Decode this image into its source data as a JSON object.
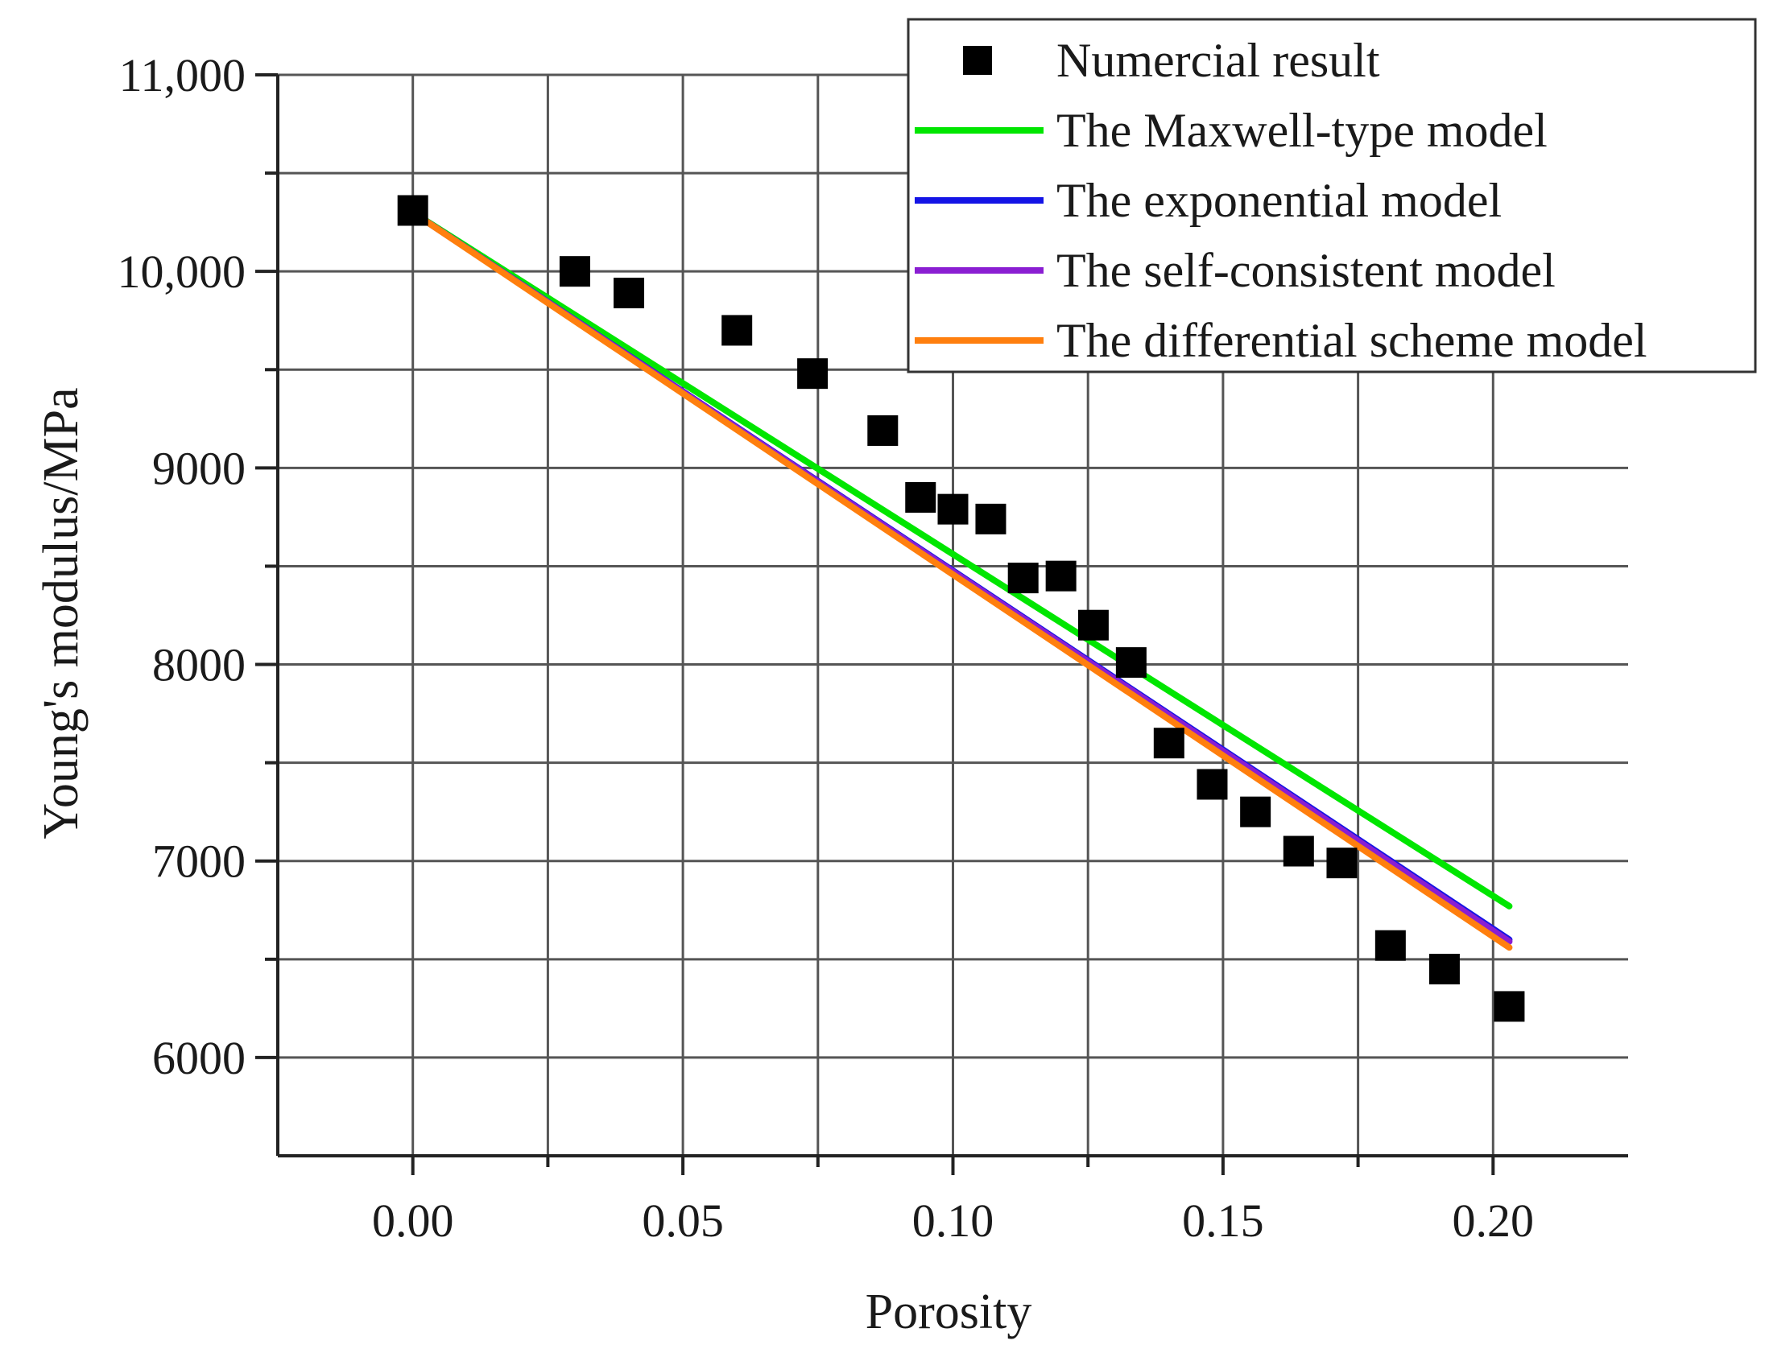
{
  "chart_data": {
    "type": "scatter",
    "title": "",
    "xlabel": "Porosity",
    "ylabel": "Young's modulus/MPa",
    "xlim": [
      -0.025,
      0.225
    ],
    "ylim": [
      5500,
      11000
    ],
    "x_ticks": [
      0.0,
      0.05,
      0.1,
      0.15,
      0.2
    ],
    "x_tick_labels": [
      "0.00",
      "0.05",
      "0.10",
      "0.15",
      "0.20"
    ],
    "x_grid": [
      0.0,
      0.025,
      0.05,
      0.075,
      0.1,
      0.125,
      0.15,
      0.175,
      0.2
    ],
    "y_ticks": [
      6000,
      7000,
      8000,
      9000,
      10000,
      11000
    ],
    "y_tick_labels": [
      "6000",
      "7000",
      "8000",
      "9000",
      "10,000",
      "11,000"
    ],
    "y_grid": [
      6000,
      6500,
      7000,
      7500,
      8000,
      8500,
      9000,
      9500,
      10000,
      10500,
      11000
    ],
    "grid": true,
    "legend_position": "top-right",
    "series": [
      {
        "name": "Numercial result",
        "kind": "scatter",
        "marker": "square",
        "color": "#000000",
        "points": [
          [
            0.0,
            10310
          ],
          [
            0.03,
            10000
          ],
          [
            0.04,
            9890
          ],
          [
            0.06,
            9700
          ],
          [
            0.074,
            9480
          ],
          [
            0.087,
            9190
          ],
          [
            0.094,
            8850
          ],
          [
            0.1,
            8790
          ],
          [
            0.107,
            8740
          ],
          [
            0.113,
            8440
          ],
          [
            0.12,
            8450
          ],
          [
            0.126,
            8200
          ],
          [
            0.133,
            8010
          ],
          [
            0.14,
            7600
          ],
          [
            0.148,
            7390
          ],
          [
            0.156,
            7250
          ],
          [
            0.164,
            7050
          ],
          [
            0.172,
            6990
          ],
          [
            0.181,
            6570
          ],
          [
            0.191,
            6450
          ],
          [
            0.203,
            6260
          ]
        ]
      },
      {
        "name": "The Maxwell-type model",
        "kind": "line",
        "color": "#00e600",
        "points": [
          [
            0.0,
            10300
          ],
          [
            0.203,
            6770
          ]
        ]
      },
      {
        "name": "The exponential model",
        "kind": "line",
        "color": "#1414e6",
        "points": [
          [
            0.0,
            10300
          ],
          [
            0.203,
            6600
          ]
        ]
      },
      {
        "name": "The self-consistent model",
        "kind": "line",
        "color": "#8a1ed2",
        "points": [
          [
            0.0,
            10300
          ],
          [
            0.203,
            6590
          ]
        ]
      },
      {
        "name": "The differential scheme model",
        "kind": "line",
        "color": "#ff7f0e",
        "points": [
          [
            0.0,
            10300
          ],
          [
            0.203,
            6560
          ]
        ]
      }
    ]
  }
}
